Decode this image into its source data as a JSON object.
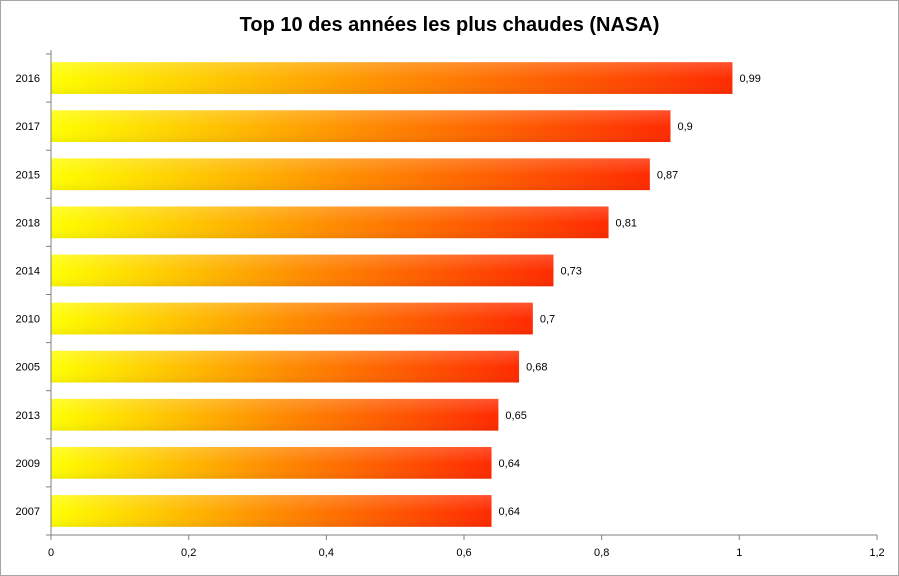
{
  "chart_data": {
    "type": "bar",
    "orientation": "horizontal",
    "title": "Top 10 des années les plus chaudes (NASA)",
    "categories": [
      "2016",
      "2017",
      "2015",
      "2018",
      "2014",
      "2010",
      "2005",
      "2013",
      "2009",
      "2007"
    ],
    "values": [
      0.99,
      0.9,
      0.87,
      0.81,
      0.73,
      0.7,
      0.68,
      0.65,
      0.64,
      0.64
    ],
    "data_labels": [
      "0,99",
      "0,9",
      "0,87",
      "0,81",
      "0,73",
      "0,7",
      "0,68",
      "0,65",
      "0,64",
      "0,64"
    ],
    "xticks": [
      0,
      0.2,
      0.4,
      0.6,
      0.8,
      1,
      1.2
    ],
    "xtick_labels": [
      "0",
      "0,2",
      "0,4",
      "0,6",
      "0,8",
      "1",
      "1,2"
    ],
    "xlim": [
      0,
      1.2
    ],
    "grid": false,
    "legend": "none",
    "gradient_colors": [
      "#ffff00",
      "#ff8c00",
      "#ff2a00"
    ]
  }
}
